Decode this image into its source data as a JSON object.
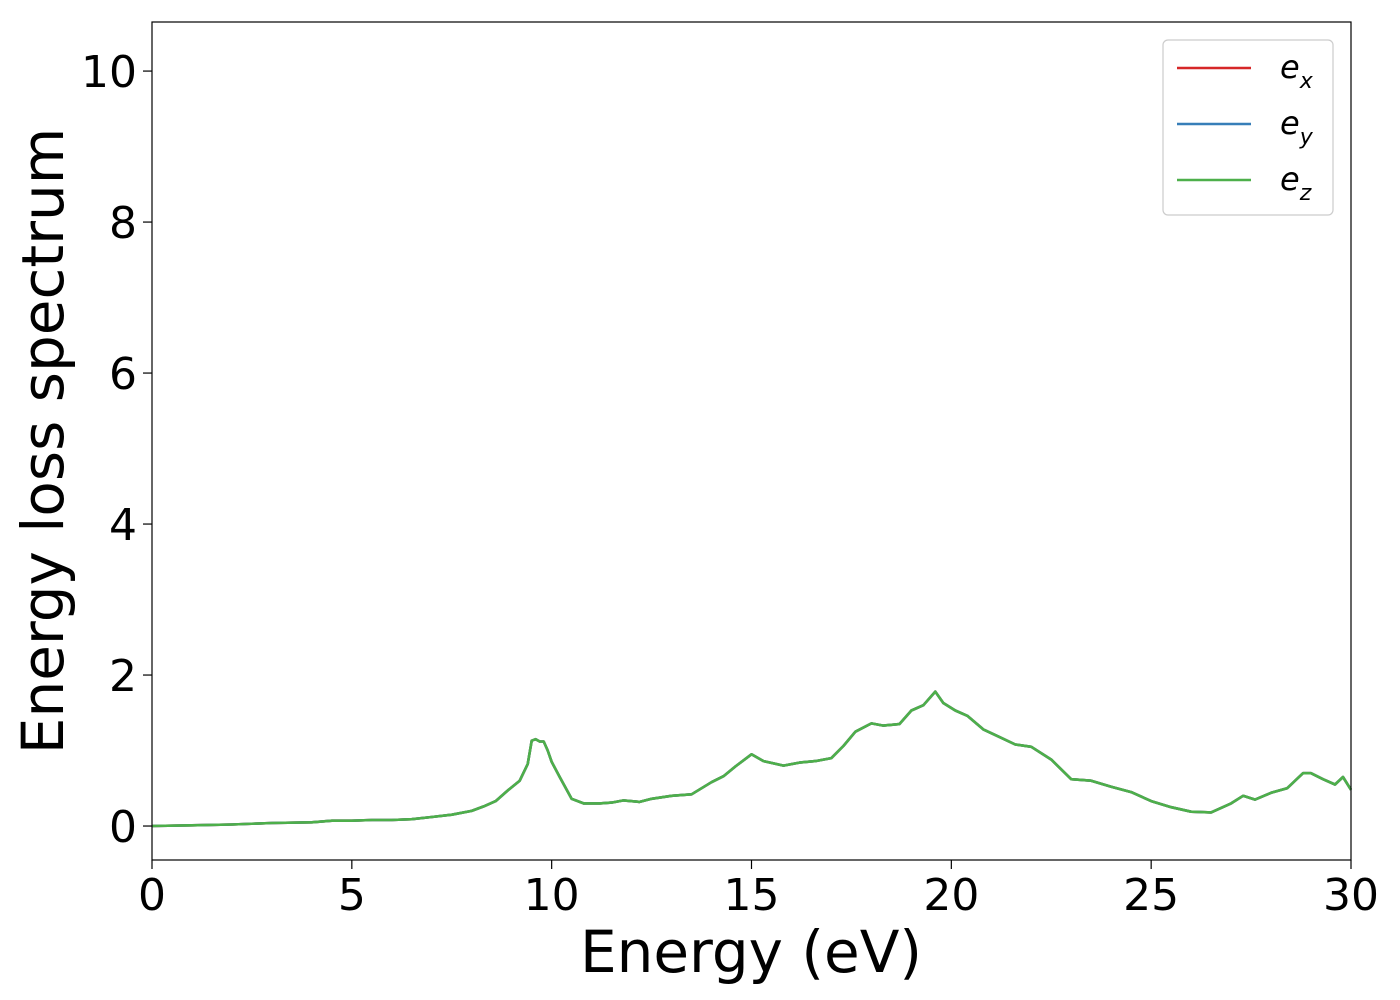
{
  "chart_data": {
    "type": "line",
    "title": "",
    "xlabel": "Energy (eV)",
    "ylabel": "Energy loss spectrum",
    "xlim": [
      0,
      30
    ],
    "ylim": [
      -0.45,
      10.65
    ],
    "xticks": [
      0,
      5,
      10,
      15,
      20,
      25,
      30
    ],
    "yticks": [
      0,
      2,
      4,
      6,
      8,
      10
    ],
    "grid": false,
    "legend_position": "top-right",
    "x": [
      0,
      1,
      2,
      3,
      4,
      4.5,
      5,
      5.5,
      6,
      6.5,
      7,
      7.5,
      8,
      8.3,
      8.6,
      8.9,
      9.2,
      9.4,
      9.5,
      9.6,
      9.7,
      9.8,
      9.9,
      10.0,
      10.2,
      10.5,
      10.8,
      11.2,
      11.5,
      11.8,
      12.2,
      12.5,
      13,
      13.5,
      14,
      14.3,
      14.6,
      15.0,
      15.3,
      15.8,
      16.2,
      16.6,
      17.0,
      17.3,
      17.6,
      18.0,
      18.3,
      18.7,
      19.0,
      19.3,
      19.6,
      19.8,
      20.1,
      20.4,
      20.8,
      21.2,
      21.6,
      22.0,
      22.5,
      23.0,
      23.5,
      24.0,
      24.5,
      25.0,
      25.5,
      26.0,
      26.5,
      27.0,
      27.3,
      27.6,
      28.0,
      28.4,
      28.8,
      29.0,
      29.3,
      29.6,
      29.8,
      30.0
    ],
    "series": [
      {
        "name": "e_x",
        "name_base": "e",
        "name_sub": "x",
        "color": "#d62728",
        "values": [
          0.0,
          0.01,
          0.02,
          0.04,
          0.05,
          0.07,
          0.07,
          0.08,
          0.08,
          0.09,
          0.12,
          0.15,
          0.2,
          0.26,
          0.33,
          0.47,
          0.6,
          0.82,
          1.13,
          1.15,
          1.12,
          1.12,
          1.0,
          0.85,
          0.65,
          0.36,
          0.3,
          0.3,
          0.31,
          0.34,
          0.32,
          0.36,
          0.4,
          0.42,
          0.58,
          0.66,
          0.79,
          0.95,
          0.86,
          0.8,
          0.84,
          0.86,
          0.9,
          1.06,
          1.25,
          1.36,
          1.33,
          1.35,
          1.53,
          1.6,
          1.78,
          1.63,
          1.53,
          1.46,
          1.28,
          1.18,
          1.08,
          1.05,
          0.88,
          0.62,
          0.6,
          0.52,
          0.45,
          0.33,
          0.25,
          0.19,
          0.18,
          0.3,
          0.4,
          0.35,
          0.44,
          0.5,
          0.7,
          0.7,
          0.62,
          0.55,
          0.65,
          0.48
        ]
      },
      {
        "name": "e_y",
        "name_base": "e",
        "name_sub": "y",
        "color": "#377eb8",
        "values": [
          0.0,
          0.01,
          0.02,
          0.04,
          0.05,
          0.07,
          0.07,
          0.08,
          0.08,
          0.09,
          0.12,
          0.15,
          0.2,
          0.26,
          0.33,
          0.47,
          0.6,
          0.82,
          1.13,
          1.15,
          1.12,
          1.12,
          1.0,
          0.85,
          0.65,
          0.36,
          0.3,
          0.3,
          0.31,
          0.34,
          0.32,
          0.36,
          0.4,
          0.42,
          0.58,
          0.66,
          0.79,
          0.95,
          0.86,
          0.8,
          0.84,
          0.86,
          0.9,
          1.06,
          1.25,
          1.36,
          1.33,
          1.35,
          1.53,
          1.6,
          1.78,
          1.63,
          1.53,
          1.46,
          1.28,
          1.18,
          1.08,
          1.05,
          0.88,
          0.62,
          0.6,
          0.52,
          0.45,
          0.33,
          0.25,
          0.19,
          0.18,
          0.3,
          0.4,
          0.35,
          0.44,
          0.5,
          0.7,
          0.7,
          0.62,
          0.55,
          0.65,
          0.48
        ]
      },
      {
        "name": "e_z",
        "name_base": "e",
        "name_sub": "z",
        "color": "#4daf4a",
        "values": [
          0.0,
          0.01,
          0.02,
          0.04,
          0.05,
          0.07,
          0.07,
          0.08,
          0.08,
          0.09,
          0.12,
          0.15,
          0.2,
          0.26,
          0.33,
          0.47,
          0.6,
          0.82,
          1.13,
          1.15,
          1.12,
          1.12,
          1.0,
          0.85,
          0.65,
          0.36,
          0.3,
          0.3,
          0.31,
          0.34,
          0.32,
          0.36,
          0.4,
          0.42,
          0.58,
          0.66,
          0.79,
          0.95,
          0.86,
          0.8,
          0.84,
          0.86,
          0.9,
          1.06,
          1.25,
          1.36,
          1.33,
          1.35,
          1.53,
          1.6,
          1.78,
          1.63,
          1.53,
          1.46,
          1.28,
          1.18,
          1.08,
          1.05,
          0.88,
          0.62,
          0.6,
          0.52,
          0.45,
          0.33,
          0.25,
          0.19,
          0.18,
          0.3,
          0.4,
          0.35,
          0.44,
          0.5,
          0.7,
          0.7,
          0.62,
          0.55,
          0.65,
          0.48
        ]
      }
    ]
  }
}
